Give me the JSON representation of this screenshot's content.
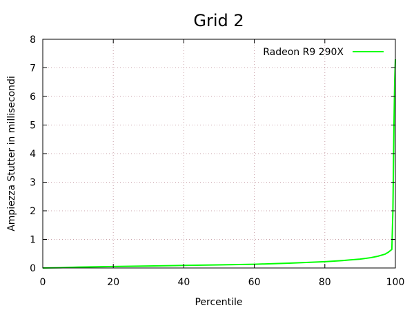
{
  "chart_data": {
    "type": "line",
    "title": "Grid 2",
    "xlabel": "Percentile",
    "ylabel": "Ampiezza Stutter in millisecondi",
    "xlim": [
      0,
      100
    ],
    "ylim": [
      0,
      8
    ],
    "xticks": [
      "0",
      "20",
      "40",
      "60",
      "80",
      "100"
    ],
    "yticks": [
      "0",
      "1",
      "2",
      "3",
      "4",
      "5",
      "6",
      "7",
      "8"
    ],
    "grid": true,
    "legend_position": "top-right",
    "series": [
      {
        "name": "Radeon R9 290X",
        "color": "#00ff00",
        "x": [
          0,
          5,
          10,
          20,
          30,
          40,
          50,
          60,
          70,
          80,
          85,
          90,
          93,
          95,
          97,
          98,
          99,
          99.3,
          99.6,
          99.8,
          100
        ],
        "y": [
          0.0,
          0.01,
          0.03,
          0.05,
          0.07,
          0.09,
          0.11,
          0.13,
          0.17,
          0.22,
          0.26,
          0.31,
          0.36,
          0.41,
          0.48,
          0.55,
          0.65,
          2.0,
          5.0,
          6.5,
          7.3
        ]
      }
    ]
  }
}
